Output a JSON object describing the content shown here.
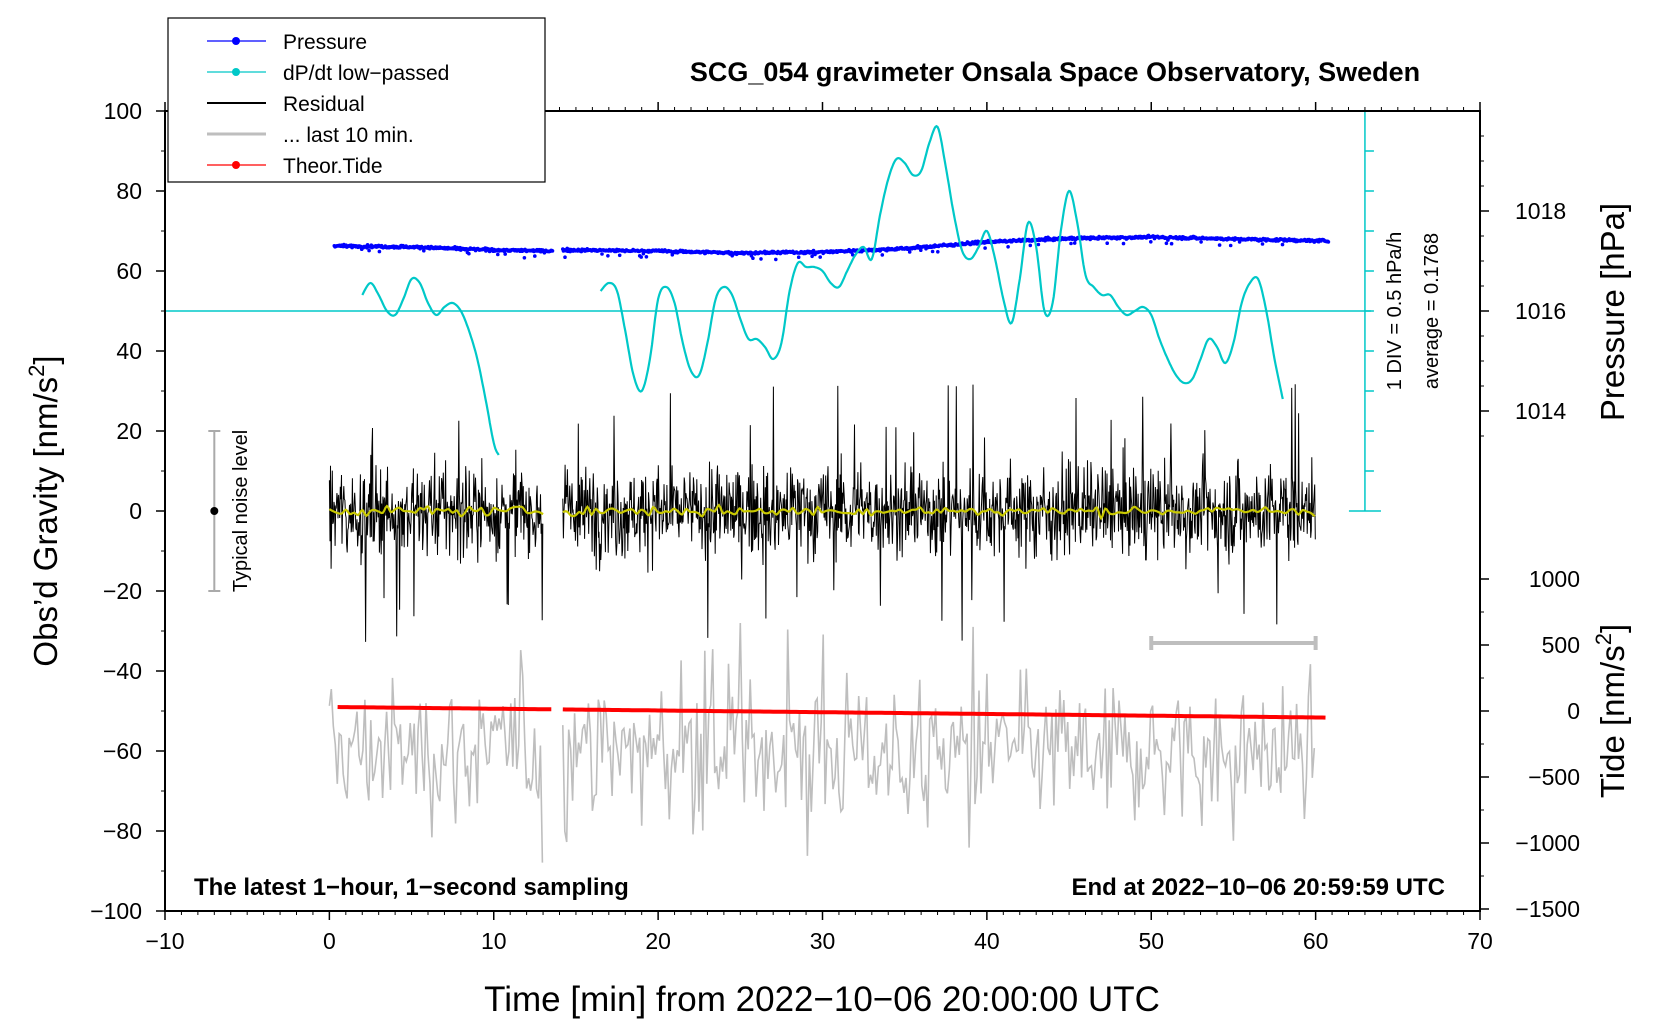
{
  "chart_data": {
    "type": "line",
    "title": "SCG_054 gravimeter Onsala Space Observatory, Sweden",
    "xlabel": "Time [min] from 2022−10−06 20:00:00 UTC",
    "ylabel_left": "Obs’d Gravity [nm/s",
    "ylabel_left_sup": "2",
    "ylabel_left_close": "]",
    "ylabel_right_pressure": "Pressure [hPa]",
    "ylabel_right_tide": "Tide [nm/s",
    "ylabel_right_tide_sup": "2",
    "ylabel_right_tide_close": "]",
    "xlim": [
      -10,
      70
    ],
    "ylim": [
      -100,
      100
    ],
    "pressure_ylim": [
      1012,
      1020
    ],
    "tide_ylim": [
      -1500,
      1000
    ],
    "x_ticks": [
      "−10",
      "0",
      "10",
      "20",
      "30",
      "40",
      "50",
      "60",
      "70"
    ],
    "x_tick_values": [
      -10,
      0,
      10,
      20,
      30,
      40,
      50,
      60,
      70
    ],
    "y_ticks": [
      "−100",
      "−80",
      "−60",
      "−40",
      "−20",
      "0",
      "20",
      "40",
      "60",
      "80",
      "100"
    ],
    "y_tick_values": [
      -100,
      -80,
      -60,
      -40,
      -20,
      0,
      20,
      40,
      60,
      80,
      100
    ],
    "pressure_ticks": [
      "1014",
      "1016",
      "1018"
    ],
    "pressure_tick_values": [
      1014,
      1016,
      1018
    ],
    "tide_ticks": [
      "−1500",
      "−1000",
      "−500",
      "0",
      "500",
      "1000"
    ],
    "tide_tick_values": [
      -1500,
      -1000,
      -500,
      0,
      500,
      1000
    ],
    "legend": [
      {
        "label": "Pressure",
        "color": "#0000ff",
        "marker": true
      },
      {
        "label": "dP/dt low−passed",
        "color": "#00c8c8",
        "marker": true
      },
      {
        "label": "Residual",
        "color": "#000000",
        "marker": false
      },
      {
        "label": "... last 10 min.",
        "color": "#bebebe",
        "marker": false
      },
      {
        "label": "Theor.Tide",
        "color": "#ff0000",
        "marker": true
      }
    ],
    "annotations": {
      "bottom_left": "The latest 1−hour, 1−second sampling",
      "bottom_right": "End at 2022−10−06 20:59:59 UTC",
      "noise_label": "Typical noise level",
      "dpdt_scale": "1 DIV = 0.5 hPa/h",
      "dpdt_average": "average = 0.1768"
    },
    "noise_bar": {
      "x": -7,
      "y_low": -20,
      "y_high": 20,
      "center": 0
    },
    "dpdt_scale_bar": {
      "x": 63,
      "y_low": 0,
      "y_high": 100,
      "baseline": 50,
      "divisions": 10
    },
    "last10_bar": {
      "x_start": 50,
      "x_end": 60,
      "y": -33
    },
    "series": [
      {
        "name": "Pressure",
        "unit": "hPa",
        "color": "#0000ff",
        "segments": [
          [
            0.3,
            13.6
          ],
          [
            14.2,
            60.8
          ]
        ],
        "points": [
          [
            0.3,
            1017.3
          ],
          [
            5,
            1017.28
          ],
          [
            10,
            1017.22
          ],
          [
            13.6,
            1017.2
          ],
          [
            14.2,
            1017.22
          ],
          [
            20,
            1017.2
          ],
          [
            25,
            1017.16
          ],
          [
            30,
            1017.18
          ],
          [
            35,
            1017.25
          ],
          [
            40,
            1017.38
          ],
          [
            45,
            1017.45
          ],
          [
            50,
            1017.48
          ],
          [
            55,
            1017.44
          ],
          [
            60.8,
            1017.4
          ]
        ]
      },
      {
        "name": "dP/dt low-passed",
        "unit": "gravity-axis nm/s2 (1 DIV = 0.5 hPa/h)",
        "color": "#00c8c8",
        "segments": [
          [
            [
              2,
              54
            ],
            [
              2.5,
              57
            ],
            [
              3,
              54
            ],
            [
              3.5,
              50
            ],
            [
              4,
              49
            ],
            [
              4.5,
              53
            ],
            [
              5,
              58
            ],
            [
              5.5,
              57
            ],
            [
              6,
              52
            ],
            [
              6.5,
              49
            ],
            [
              7,
              51
            ],
            [
              7.5,
              52
            ],
            [
              8,
              50
            ],
            [
              8.5,
              45
            ],
            [
              9,
              38
            ],
            [
              9.5,
              28
            ],
            [
              10,
              17
            ],
            [
              10.3,
              14
            ]
          ],
          [
            [
              16.5,
              55
            ],
            [
              17,
              57
            ],
            [
              17.5,
              55
            ],
            [
              18,
              45
            ],
            [
              18.5,
              34
            ],
            [
              19,
              30
            ],
            [
              19.5,
              38
            ],
            [
              20,
              53
            ],
            [
              20.5,
              56
            ],
            [
              21,
              52
            ],
            [
              21.5,
              42
            ],
            [
              22,
              35
            ],
            [
              22.5,
              34
            ],
            [
              23,
              42
            ],
            [
              23.5,
              53
            ],
            [
              24,
              56
            ],
            [
              24.5,
              54
            ],
            [
              25,
              48
            ],
            [
              25.5,
              43
            ],
            [
              26,
              43
            ],
            [
              26.5,
              41
            ],
            [
              27,
              38
            ],
            [
              27.5,
              42
            ],
            [
              28,
              55
            ],
            [
              28.5,
              62
            ],
            [
              29,
              61
            ],
            [
              29.5,
              61
            ],
            [
              30,
              60
            ],
            [
              30.5,
              57
            ],
            [
              31,
              56
            ],
            [
              31.5,
              60
            ],
            [
              32,
              64
            ],
            [
              32.5,
              66
            ],
            [
              33,
              63
            ],
            [
              33.5,
              74
            ],
            [
              34,
              83
            ],
            [
              34.5,
              88
            ],
            [
              35,
              87
            ],
            [
              35.5,
              84
            ],
            [
              36,
              85
            ],
            [
              36.5,
              92
            ],
            [
              37,
              96
            ],
            [
              37.5,
              86
            ],
            [
              38,
              74
            ],
            [
              38.5,
              65
            ],
            [
              39,
              63
            ],
            [
              39.5,
              66
            ],
            [
              40,
              70
            ],
            [
              40.5,
              63
            ],
            [
              41,
              53
            ],
            [
              41.5,
              47
            ],
            [
              42,
              58
            ],
            [
              42.5,
              72
            ],
            [
              43,
              66
            ],
            [
              43.5,
              50
            ],
            [
              44,
              52
            ],
            [
              44.5,
              70
            ],
            [
              45,
              80
            ],
            [
              45.5,
              72
            ],
            [
              46,
              59
            ],
            [
              46.5,
              56
            ],
            [
              47,
              54
            ],
            [
              47.5,
              54
            ],
            [
              48,
              51
            ],
            [
              48.5,
              49
            ],
            [
              49,
              50
            ],
            [
              49.5,
              51
            ],
            [
              50,
              49
            ],
            [
              50.5,
              43
            ],
            [
              51,
              38
            ],
            [
              51.5,
              34
            ],
            [
              52,
              32
            ],
            [
              52.5,
              33
            ],
            [
              53,
              38
            ],
            [
              53.5,
              43
            ],
            [
              54,
              41
            ],
            [
              54.5,
              37
            ],
            [
              55,
              42
            ],
            [
              55.5,
              52
            ],
            [
              56,
              57
            ],
            [
              56.5,
              58
            ],
            [
              57,
              50
            ],
            [
              57.5,
              38
            ],
            [
              58,
              28
            ]
          ]
        ]
      },
      {
        "name": "Residual",
        "unit": "nm/s2",
        "color": "#000000",
        "segments": [
          [
            0,
            13
          ],
          [
            14.2,
            60
          ]
        ],
        "envelope_typical": [
          -15,
          15
        ],
        "envelope_extreme": [
          -38,
          36
        ]
      },
      {
        "name": "Residual low-passed",
        "unit": "nm/s2",
        "color": "#c8c800",
        "segments": [
          [
            0,
            13
          ],
          [
            14.2,
            60
          ]
        ],
        "mean": 0
      },
      {
        "name": "... last 10 min.",
        "unit": "nm/s2 (offset)",
        "color": "#bebebe",
        "segments": [
          [
            0,
            13
          ],
          [
            14.2,
            60
          ]
        ],
        "center": -60,
        "range": [
          -100,
          -28
        ]
      },
      {
        "name": "Theor.Tide",
        "unit": "nm/s2",
        "color": "#ff0000",
        "segments": [
          [
            0.5,
            13.5
          ],
          [
            14.2,
            60.8
          ]
        ],
        "points": [
          [
            0.5,
            30
          ],
          [
            13.5,
            15
          ],
          [
            14.2,
            10
          ],
          [
            30,
            -10
          ],
          [
            45,
            -30
          ],
          [
            60.8,
            -50
          ]
        ]
      }
    ]
  }
}
